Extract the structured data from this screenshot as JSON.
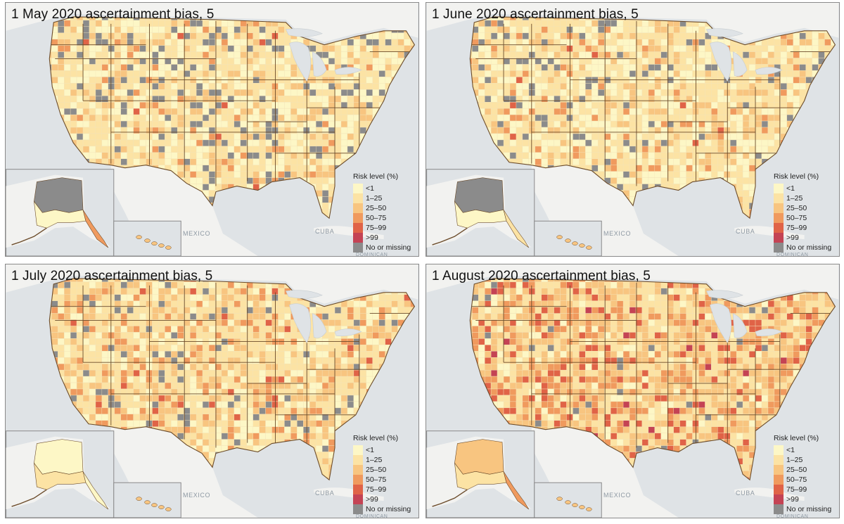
{
  "panels": [
    {
      "title": "1 May 2020 ascertainment bias, 5"
    },
    {
      "title": "1 June 2020 ascertainment bias, 5"
    },
    {
      "title": "1 July 2020 ascertainment bias, 5"
    },
    {
      "title": "1 August 2020 ascertainment bias, 5"
    }
  ],
  "legend": {
    "title": "Risk level (%)",
    "items": [
      {
        "label": "<1",
        "color": "#fdf7c6"
      },
      {
        "label": "1–25",
        "color": "#fce3a4"
      },
      {
        "label": "25–50",
        "color": "#f8c580"
      },
      {
        "label": "50–75",
        "color": "#f09a5e"
      },
      {
        "label": "75–99",
        "color": "#e06347"
      },
      {
        "label": ">99",
        "color": "#c44354"
      },
      {
        "label": "No or missing",
        "color": "#8b8b8b"
      }
    ]
  },
  "map_labels": {
    "mexico": "MEXICO",
    "cuba": "CUBA",
    "dominican": "DOMINICAN"
  }
}
